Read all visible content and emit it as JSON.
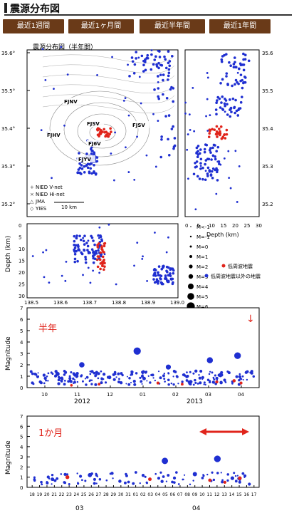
{
  "header": {
    "title": "震源分布図"
  },
  "tabs": [
    {
      "label": "最近1週間"
    },
    {
      "label": "最近1ヶ月間"
    },
    {
      "label": "最近半年間"
    },
    {
      "label": "最近1年間"
    }
  ],
  "map": {
    "title": "震源分布図（半年間）",
    "lat_ticks": [
      "35.6°",
      "35.5°",
      "35.4°",
      "35.3°",
      "35.2°"
    ],
    "right_lat_ticks": [
      "35.6",
      "35.5",
      "35.4",
      "35.3",
      "35.2"
    ],
    "station_labels": [
      "FJNV",
      "FJSV",
      "FJSV",
      "FJHV",
      "FJ6V",
      "FJYV"
    ],
    "legend": [
      "NIED V-net",
      "NIED Hi-net",
      "JMA",
      "YIES"
    ],
    "scale_label": "10 km"
  },
  "depth_right": {
    "x_ticks": [
      "0",
      "5",
      "10",
      "15",
      "20",
      "25",
      "30"
    ],
    "xlabel": "Depth (km)"
  },
  "cross_section": {
    "ylabel": "Depth (km)",
    "y_ticks": [
      "0",
      "5",
      "10",
      "15",
      "20",
      "25",
      "30"
    ],
    "x_ticks": [
      "138.5",
      "138.6",
      "138.7",
      "138.8",
      "138.9",
      "139.0"
    ]
  },
  "mag_legend": {
    "items": [
      "M<-1",
      "M=-1",
      "M=0",
      "M=1",
      "M=2",
      "M=3",
      "M=4",
      "M=5",
      "M=6"
    ],
    "low_freq": "低周波地震",
    "other": "低周波地震以外の地震"
  },
  "halfyear_chart": {
    "ylabel": "Magnitude",
    "period_label": "半年",
    "y_ticks": [
      "0",
      "1",
      "2",
      "3",
      "4",
      "5",
      "6",
      "7"
    ],
    "month_ticks": [
      "10",
      "11",
      "12",
      "01",
      "02",
      "03",
      "04"
    ],
    "year_labels": [
      "2012",
      "2013"
    ]
  },
  "month_chart": {
    "ylabel": "Magnitude",
    "period_label": "1か月",
    "y_ticks": [
      "0",
      "1",
      "2",
      "3",
      "4",
      "5",
      "6",
      "7"
    ],
    "day_ticks": [
      "18",
      "19",
      "20",
      "21",
      "22",
      "23",
      "24",
      "25",
      "26",
      "27",
      "28",
      "29",
      "30",
      "31",
      "01",
      "02",
      "03",
      "04",
      "05",
      "06",
      "07",
      "08",
      "09",
      "10",
      "11",
      "12",
      "13",
      "14",
      "15",
      "16",
      "17"
    ],
    "month_labels": [
      "03",
      "04"
    ]
  },
  "colors": {
    "tab_bg": "#6a3a18",
    "blue": "#1f2fd1",
    "red": "#e0241b",
    "marker_red": "#e0241b"
  },
  "chart_data": [
    {
      "type": "scatter",
      "title": "",
      "ylabel": "Magnitude",
      "y_range": [
        0,
        7
      ],
      "x_labels": [
        "10",
        "11",
        "12",
        "01",
        "02",
        "03",
        "04"
      ],
      "annotation": "半年",
      "series": [
        {
          "name": "低周波地震以外の地震",
          "x": [
            0.3,
            0.8,
            1.0,
            1.5,
            2.3,
            3.1,
            3.3,
            4.0,
            4.6,
            5.2,
            5.5,
            6.0
          ],
          "y": [
            0.5,
            1.2,
            0.3,
            2.0,
            0.9,
            3.2,
            0.8,
            1.8,
            0.5,
            2.4,
            1.1,
            2.8
          ]
        },
        {
          "name": "低周波地震",
          "x": [
            1.2,
            2.0,
            3.7,
            4.4,
            5.4,
            5.9,
            6.1
          ],
          "y": [
            0.2,
            0.3,
            0.4,
            0.3,
            0.5,
            0.6,
            0.4
          ]
        }
      ]
    },
    {
      "type": "scatter",
      "title": "",
      "ylabel": "Magnitude",
      "y_range": [
        0,
        7
      ],
      "x_labels": [
        "03",
        "04"
      ],
      "annotation": "1か月",
      "series": [
        {
          "name": "低周波地震以外の地震",
          "x": [
            3,
            8,
            12,
            18,
            22,
            25,
            27
          ],
          "y": [
            0.8,
            1.2,
            0.6,
            2.6,
            1.3,
            2.8,
            0.9
          ]
        },
        {
          "name": "低周波地震",
          "x": [
            5,
            16,
            24,
            26,
            28
          ],
          "y": [
            1.0,
            0.8,
            0.7,
            0.5,
            0.9
          ]
        }
      ]
    }
  ]
}
